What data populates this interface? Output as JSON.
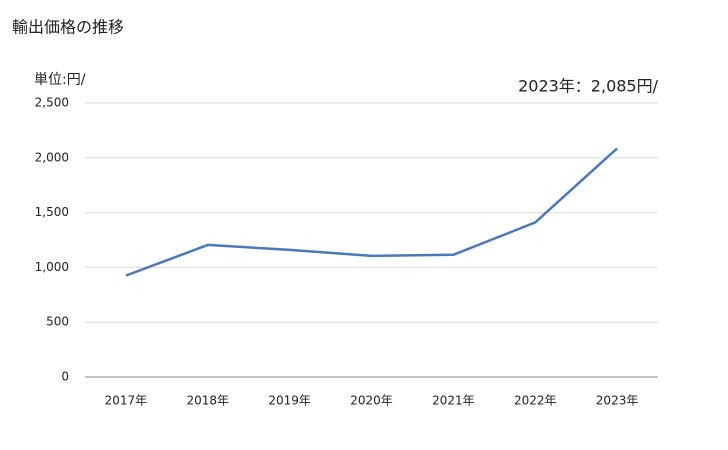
{
  "chart_data": {
    "type": "line",
    "title": "輸出価格の推移",
    "unit_label": "単位:円/",
    "annotation": "2023年：2,085円/",
    "categories": [
      "2017年",
      "2018年",
      "2019年",
      "2020年",
      "2021年",
      "2022年",
      "2023年"
    ],
    "series": [
      {
        "name": "輸出価格",
        "color": "#4a78b9",
        "values": [
          925,
          1205,
          1160,
          1105,
          1115,
          1410,
          2085
        ]
      }
    ],
    "ylim": [
      0,
      2500
    ],
    "yticks": [
      0,
      500,
      {
        "value": 1000,
        "label": "1,000"
      },
      {
        "value": 1500,
        "label": "1,500"
      },
      {
        "value": 2000,
        "label": "2,000"
      },
      {
        "value": 2500,
        "label": "2,500"
      }
    ],
    "grid": true
  }
}
